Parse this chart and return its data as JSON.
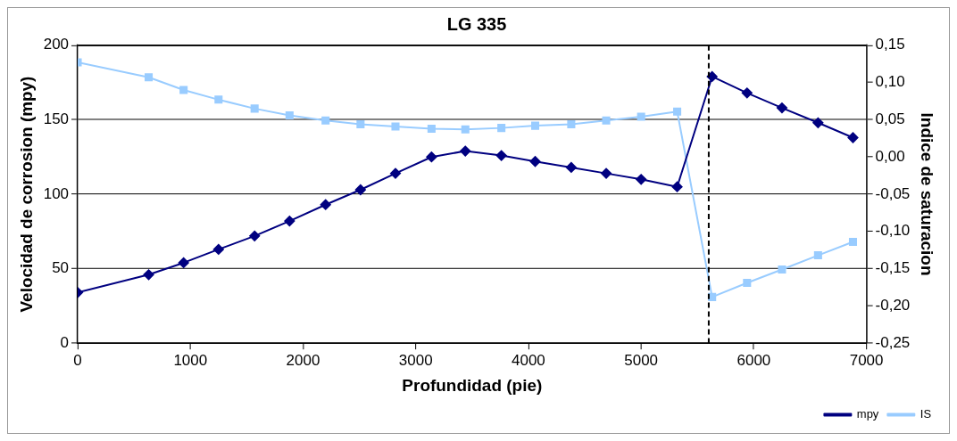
{
  "chart_data": {
    "type": "line",
    "title": "LG 335",
    "xlabel": "Profundidad (pie)",
    "ylabel": "Velocidad de corrosion (mpy)",
    "y2label": "Indice de saturacion",
    "x": [
      0,
      630,
      940,
      1250,
      1570,
      1880,
      2200,
      2510,
      2820,
      3140,
      3440,
      3760,
      4060,
      4380,
      4690,
      5000,
      5320,
      5630,
      5940,
      6250,
      6570,
      6880
    ],
    "series": [
      {
        "name": "mpy",
        "color": "#000080",
        "marker": "diamond",
        "values": [
          34,
          46,
          54,
          63,
          72,
          82,
          93,
          103,
          114,
          125,
          129,
          126,
          122,
          118,
          114,
          110,
          105,
          179,
          168,
          158,
          148,
          138
        ]
      },
      {
        "name": "IS",
        "color": "#99ccff",
        "marker": "square",
        "axis": "y2",
        "values": [
          0.127,
          0.107,
          0.09,
          0.077,
          0.065,
          0.056,
          0.049,
          0.044,
          0.041,
          0.038,
          0.037,
          0.039,
          0.042,
          0.044,
          0.049,
          0.054,
          0.061,
          -0.188,
          -0.169,
          -0.151,
          -0.132,
          -0.114
        ]
      }
    ],
    "xlim": [
      0,
      7000
    ],
    "xticks": [
      0,
      1000,
      2000,
      3000,
      4000,
      5000,
      6000,
      7000
    ],
    "ylim": [
      0,
      200
    ],
    "yticks": [
      0,
      50,
      100,
      150,
      200
    ],
    "y2lim": [
      -0.25,
      0.15
    ],
    "y2ticks": [
      {
        "value": -0.25,
        "label": "-0,25"
      },
      {
        "value": -0.2,
        "label": "-0,20"
      },
      {
        "value": -0.15,
        "label": "-0,15"
      },
      {
        "value": -0.1,
        "label": "-0,10"
      },
      {
        "value": -0.05,
        "label": "-0,05"
      },
      {
        "value": 0,
        "label": "0,00"
      },
      {
        "value": 0.05,
        "label": "0,05"
      },
      {
        "value": 0.1,
        "label": "0,10"
      },
      {
        "value": 0.15,
        "label": "0,15"
      }
    ],
    "ref_lines": [
      {
        "axis": "x",
        "value": 5600,
        "color": "#000000",
        "line_style": "dashed"
      }
    ],
    "grid": "y",
    "legend": "bottom right",
    "line_style": "solid"
  }
}
